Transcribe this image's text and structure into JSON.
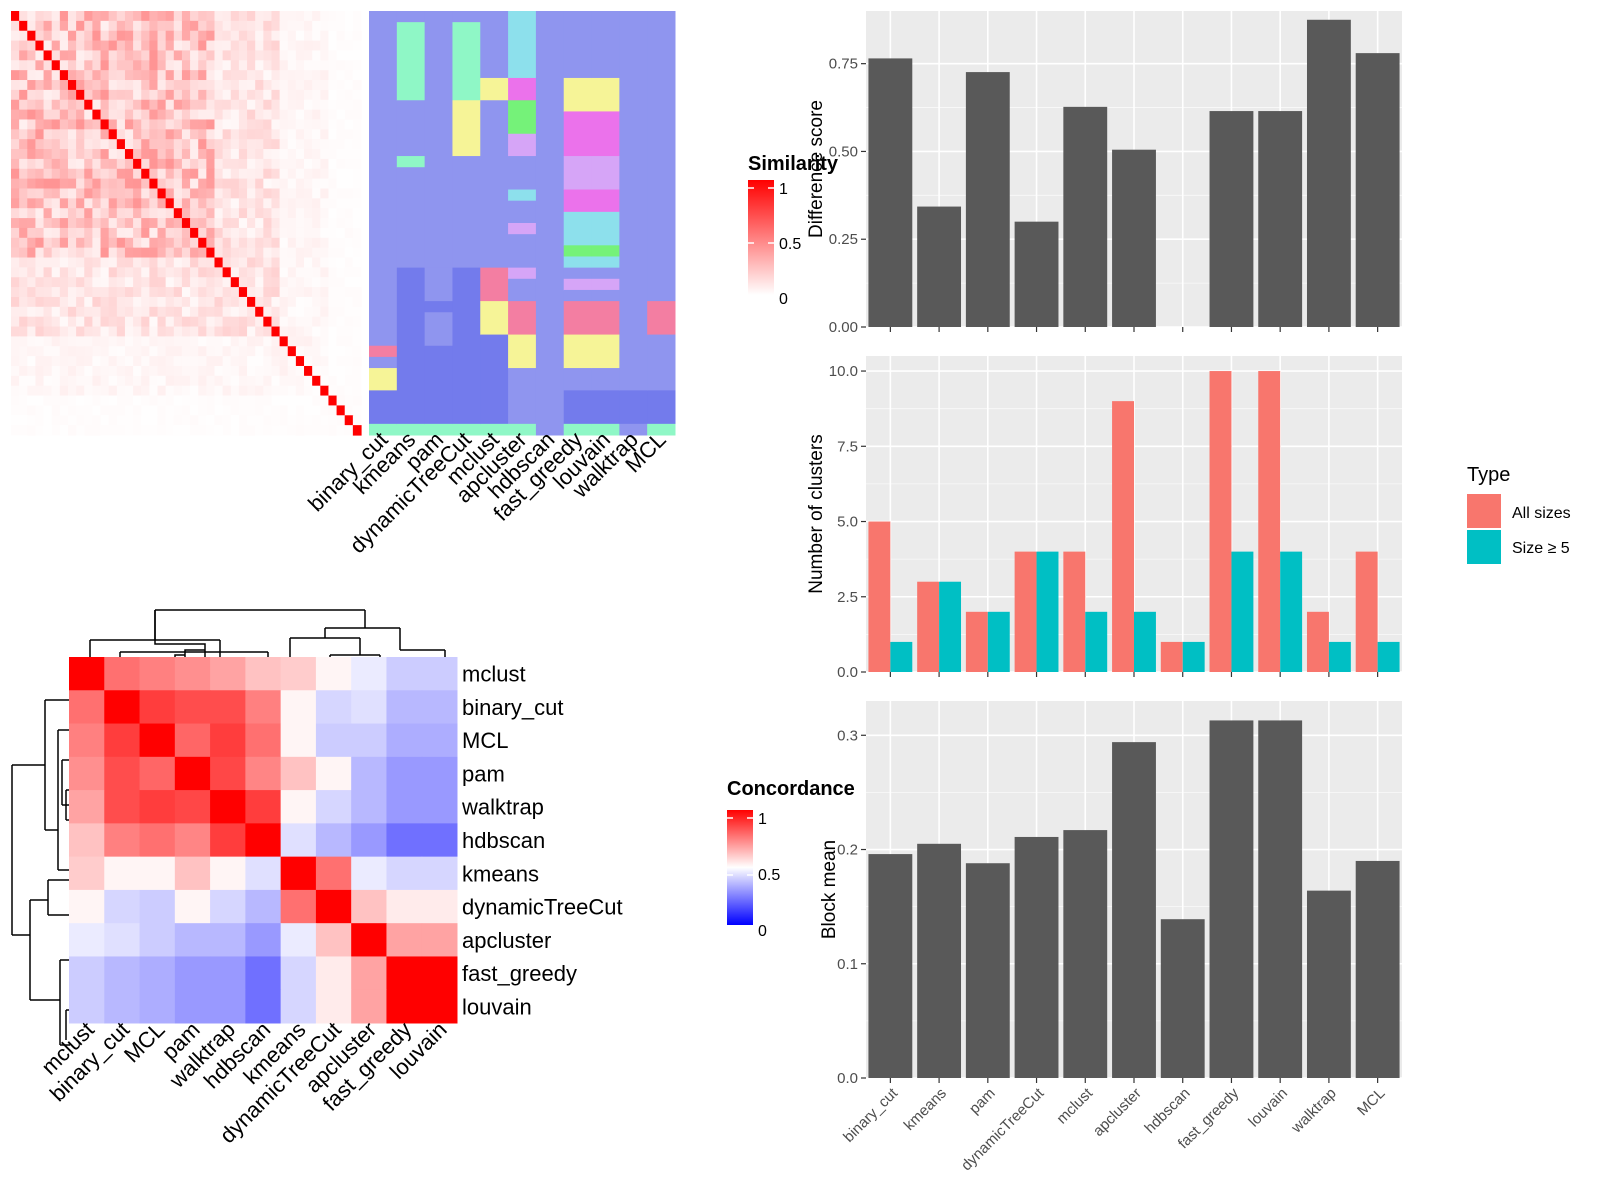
{
  "chart_data": [
    {
      "type": "heatmap",
      "subtype": "cell-similarity-with-cluster-annotation",
      "n_terms": 43,
      "diagonal_color": "#ff0000",
      "methods": [
        "binary_cut",
        "kmeans",
        "pam",
        "dynamicTreeCut",
        "mclust",
        "apcluster",
        "hdbscan",
        "fast_greedy",
        "louvain",
        "walktrap",
        "MCL"
      ],
      "legend": {
        "title": "Similarity",
        "ticks": [
          "1",
          "0.5",
          "0"
        ],
        "colors": [
          "#ffffff",
          "#ff0000"
        ]
      },
      "cluster_colors": [
        "#8f95ef",
        "#f37ea2",
        "#f6f497",
        "#eb72eb",
        "#d6a5f7",
        "#8de0ec",
        "#75f279",
        "#8ff7c6",
        "#737bec"
      ],
      "cluster_assignments": [
        {
          "method": "binary_cut",
          "runs": [
            [
              0,
              30,
              0
            ],
            [
              30,
              31,
              1
            ],
            [
              31,
              32,
              0
            ],
            [
              32,
              34,
              2
            ],
            [
              34,
              37,
              8
            ],
            [
              37,
              38,
              7
            ]
          ]
        },
        {
          "method": "kmeans",
          "runs": [
            [
              0,
              1,
              0
            ],
            [
              1,
              8,
              7
            ],
            [
              8,
              13,
              0
            ],
            [
              13,
              14,
              7
            ],
            [
              14,
              23,
              0
            ],
            [
              23,
              37,
              8
            ],
            [
              37,
              38,
              7
            ]
          ]
        },
        {
          "method": "pam",
          "runs": [
            [
              0,
              23,
              0
            ],
            [
              23,
              26,
              0
            ],
            [
              26,
              27,
              8
            ],
            [
              27,
              30,
              0
            ],
            [
              30,
              37,
              8
            ],
            [
              37,
              38,
              7
            ]
          ]
        },
        {
          "method": "dynamicTreeCut",
          "runs": [
            [
              0,
              1,
              0
            ],
            [
              1,
              8,
              7
            ],
            [
              8,
              13,
              2
            ],
            [
              13,
              23,
              0
            ],
            [
              23,
              37,
              8
            ],
            [
              37,
              38,
              7
            ]
          ]
        },
        {
          "method": "mclust",
          "runs": [
            [
              0,
              6,
              0
            ],
            [
              6,
              8,
              2
            ],
            [
              8,
              23,
              0
            ],
            [
              23,
              26,
              1
            ],
            [
              26,
              29,
              2
            ],
            [
              29,
              37,
              8
            ],
            [
              37,
              38,
              7
            ]
          ]
        },
        {
          "method": "apcluster",
          "runs": [
            [
              0,
              6,
              5
            ],
            [
              6,
              8,
              3
            ],
            [
              8,
              11,
              6
            ],
            [
              11,
              13,
              4
            ],
            [
              13,
              16,
              0
            ],
            [
              16,
              17,
              5
            ],
            [
              17,
              19,
              0
            ],
            [
              19,
              20,
              4
            ],
            [
              20,
              23,
              0
            ],
            [
              23,
              24,
              4
            ],
            [
              24,
              26,
              0
            ],
            [
              26,
              29,
              1
            ],
            [
              29,
              32,
              2
            ],
            [
              32,
              37,
              0
            ],
            [
              37,
              38,
              7
            ]
          ]
        },
        {
          "method": "hdbscan",
          "runs": [
            [
              0,
              38,
              0
            ]
          ]
        },
        {
          "method": "fast_greedy",
          "runs": [
            [
              0,
              6,
              0
            ],
            [
              6,
              9,
              2
            ],
            [
              9,
              13,
              3
            ],
            [
              13,
              16,
              4
            ],
            [
              16,
              18,
              3
            ],
            [
              18,
              21,
              5
            ],
            [
              21,
              22,
              6
            ],
            [
              22,
              23,
              5
            ],
            [
              23,
              24,
              0
            ],
            [
              24,
              25,
              4
            ],
            [
              25,
              26,
              0
            ],
            [
              26,
              29,
              1
            ],
            [
              29,
              32,
              2
            ],
            [
              32,
              34,
              0
            ],
            [
              34,
              37,
              8
            ],
            [
              37,
              38,
              7
            ]
          ]
        },
        {
          "method": "louvain",
          "runs": [
            [
              0,
              6,
              0
            ],
            [
              6,
              9,
              2
            ],
            [
              9,
              13,
              3
            ],
            [
              13,
              16,
              4
            ],
            [
              16,
              18,
              3
            ],
            [
              18,
              21,
              5
            ],
            [
              21,
              22,
              6
            ],
            [
              22,
              23,
              5
            ],
            [
              23,
              24,
              0
            ],
            [
              24,
              25,
              4
            ],
            [
              25,
              26,
              0
            ],
            [
              26,
              29,
              1
            ],
            [
              29,
              32,
              2
            ],
            [
              32,
              34,
              0
            ],
            [
              34,
              37,
              8
            ],
            [
              37,
              38,
              7
            ]
          ]
        },
        {
          "method": "walktrap",
          "runs": [
            [
              0,
              34,
              0
            ],
            [
              34,
              37,
              8
            ],
            [
              37,
              38,
              0
            ]
          ]
        },
        {
          "method": "MCL",
          "runs": [
            [
              0,
              26,
              0
            ],
            [
              26,
              29,
              1
            ],
            [
              29,
              34,
              0
            ],
            [
              34,
              37,
              8
            ],
            [
              37,
              38,
              7
            ]
          ]
        }
      ]
    },
    {
      "type": "heatmap",
      "subtype": "concordance",
      "rows": [
        "mclust",
        "binary_cut",
        "MCL",
        "pam",
        "walktrap",
        "hdbscan",
        "kmeans",
        "dynamicTreeCut",
        "apcluster",
        "fast_greedy",
        "louvain"
      ],
      "columns": [
        "mclust",
        "binary_cut",
        "MCL",
        "pam",
        "walktrap",
        "hdbscan",
        "kmeans",
        "dynamicTreeCut",
        "apcluster",
        "fast_greedy",
        "louvain"
      ],
      "values": [
        [
          1.0,
          0.78,
          0.75,
          0.72,
          0.68,
          0.62,
          0.6,
          0.52,
          0.46,
          0.4,
          0.4
        ],
        [
          0.78,
          1.0,
          0.88,
          0.85,
          0.85,
          0.75,
          0.52,
          0.42,
          0.44,
          0.36,
          0.36
        ],
        [
          0.75,
          0.88,
          1.0,
          0.8,
          0.88,
          0.78,
          0.52,
          0.4,
          0.4,
          0.34,
          0.34
        ],
        [
          0.72,
          0.85,
          0.8,
          1.0,
          0.86,
          0.74,
          0.62,
          0.52,
          0.36,
          0.3,
          0.3
        ],
        [
          0.68,
          0.85,
          0.88,
          0.86,
          1.0,
          0.88,
          0.52,
          0.42,
          0.36,
          0.3,
          0.3
        ],
        [
          0.62,
          0.75,
          0.78,
          0.74,
          0.88,
          1.0,
          0.44,
          0.36,
          0.3,
          0.22,
          0.22
        ],
        [
          0.6,
          0.52,
          0.52,
          0.62,
          0.52,
          0.44,
          1.0,
          0.78,
          0.46,
          0.42,
          0.42
        ],
        [
          0.52,
          0.42,
          0.4,
          0.52,
          0.42,
          0.36,
          0.78,
          1.0,
          0.62,
          0.54,
          0.54
        ],
        [
          0.46,
          0.44,
          0.4,
          0.36,
          0.36,
          0.3,
          0.46,
          0.62,
          1.0,
          0.68,
          0.68
        ],
        [
          0.4,
          0.36,
          0.34,
          0.3,
          0.3,
          0.22,
          0.42,
          0.54,
          0.68,
          1.0,
          1.0
        ],
        [
          0.4,
          0.36,
          0.34,
          0.3,
          0.3,
          0.22,
          0.42,
          0.54,
          0.68,
          1.0,
          1.0
        ]
      ],
      "legend": {
        "title": "Concordance",
        "ticks": [
          "1",
          "0.5",
          "0"
        ],
        "colors": [
          "#0000ff",
          "#ffffff",
          "#ff0000"
        ]
      }
    },
    {
      "type": "bar",
      "categories": [
        "binary_cut",
        "kmeans",
        "pam",
        "dynamicTreeCut",
        "mclust",
        "apcluster",
        "hdbscan",
        "fast_greedy",
        "louvain",
        "walktrap",
        "MCL"
      ],
      "values": [
        0.765,
        0.343,
        0.726,
        0.3,
        0.627,
        0.505,
        0,
        0.615,
        0.615,
        0.875,
        0.78
      ],
      "ylabel": "Difference score",
      "ylim": [
        0,
        0.9
      ],
      "yticks": [
        "0.00",
        "0.25",
        "0.50",
        "0.75"
      ],
      "bar_color": "#595959",
      "grid": true
    },
    {
      "type": "bar",
      "categories": [
        "binary_cut",
        "kmeans",
        "pam",
        "dynamicTreeCut",
        "mclust",
        "apcluster",
        "hdbscan",
        "fast_greedy",
        "louvain",
        "walktrap",
        "MCL"
      ],
      "series": [
        {
          "name": "All sizes",
          "color": "#f8766d",
          "values": [
            5,
            3,
            2,
            4,
            4,
            9,
            1,
            10,
            10,
            2,
            4
          ]
        },
        {
          "name": "Size ≥ 5",
          "color": "#00bfc4",
          "values": [
            1,
            3,
            2,
            4,
            2,
            2,
            1,
            4,
            4,
            1,
            1
          ]
        }
      ],
      "ylabel": "Number of clusters",
      "ylim": [
        0,
        10.5
      ],
      "yticks": [
        "0.0",
        "2.5",
        "5.0",
        "7.5",
        "10.0"
      ],
      "legend": {
        "title": "Type",
        "placement": "right"
      },
      "grid": true
    },
    {
      "type": "bar",
      "categories": [
        "binary_cut",
        "kmeans",
        "pam",
        "dynamicTreeCut",
        "mclust",
        "apcluster",
        "hdbscan",
        "fast_greedy",
        "louvain",
        "walktrap",
        "MCL"
      ],
      "values": [
        0.196,
        0.205,
        0.188,
        0.211,
        0.217,
        0.294,
        0.139,
        0.313,
        0.313,
        0.164,
        0.19
      ],
      "ylabel": "Block mean",
      "ylim": [
        0,
        0.33
      ],
      "yticks": [
        "0.0",
        "0.1",
        "0.2",
        "0.3"
      ],
      "bar_color": "#595959",
      "grid": true
    }
  ]
}
